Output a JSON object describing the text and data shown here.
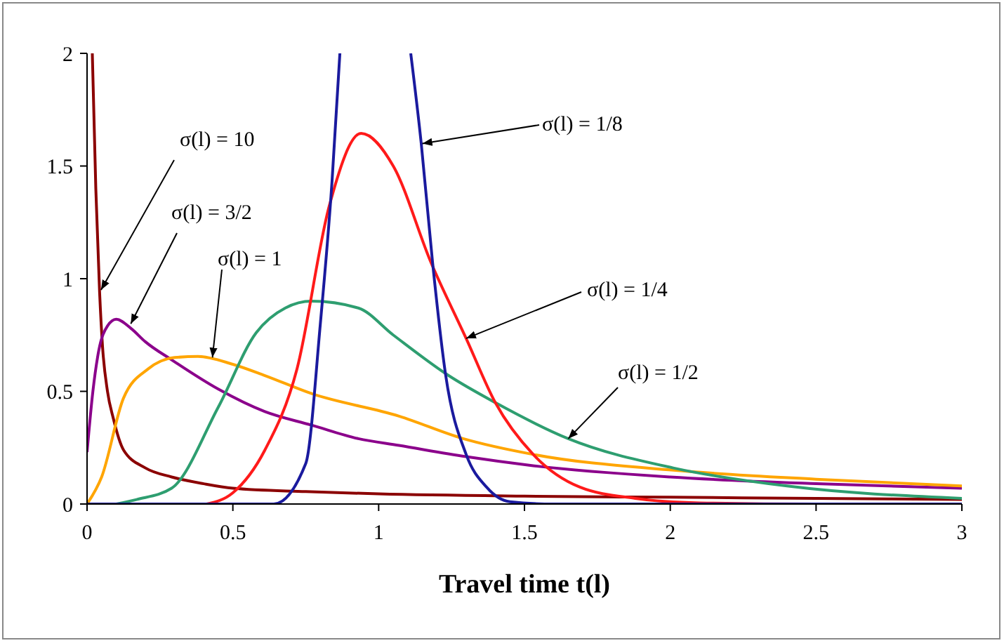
{
  "chart_data": {
    "type": "line",
    "xlabel": "Travel time t(l)",
    "xlim": [
      0,
      3
    ],
    "ylim": [
      0,
      2
    ],
    "xticks": [
      0,
      0.5,
      1,
      1.5,
      2,
      2.5,
      3
    ],
    "yticks": [
      0,
      0.5,
      1,
      1.5,
      2
    ],
    "grid": false,
    "marker": "none",
    "line_style": "solid",
    "series": [
      {
        "color": "#8b0000",
        "x": [
          0.018,
          0.03,
          0.043,
          0.053,
          0.07,
          0.09,
          0.125,
          0.2,
          0.29,
          0.4,
          0.5,
          0.75,
          1,
          1.5,
          2,
          2.5,
          3
        ],
        "values": [
          2,
          1.4,
          0.94,
          0.7,
          0.5,
          0.38,
          0.24,
          0.16,
          0.12,
          0.09,
          0.07,
          0.055,
          0.045,
          0.035,
          0.03,
          0.025,
          0.02
        ]
      },
      {
        "color": "#8b008b",
        "x": [
          0,
          0.02,
          0.04,
          0.07,
          0.1,
          0.15,
          0.2,
          0.29,
          0.45,
          0.61,
          0.77,
          0.93,
          1.07,
          1.3,
          1.53,
          2,
          2.5,
          3
        ],
        "values": [
          0.23,
          0.5,
          0.68,
          0.79,
          0.82,
          0.78,
          0.72,
          0.64,
          0.51,
          0.41,
          0.35,
          0.29,
          0.26,
          0.21,
          0.17,
          0.12,
          0.09,
          0.07
        ]
      },
      {
        "color": "#ffa500",
        "x": [
          0,
          0.05,
          0.125,
          0.21,
          0.3,
          0.38,
          0.5,
          0.61,
          0.77,
          1.07,
          1.29,
          1.53,
          2.01,
          2.5,
          3
        ],
        "values": [
          0,
          0.12,
          0.47,
          0.6,
          0.65,
          0.655,
          0.62,
          0.57,
          0.49,
          0.39,
          0.29,
          0.22,
          0.15,
          0.11,
          0.08
        ]
      },
      {
        "color": "#2e9e70",
        "x": [
          0.1,
          0.17,
          0.29,
          0.45,
          0.58,
          0.68,
          0.77,
          0.93,
          1.05,
          1.24,
          1.4,
          1.65,
          2.01,
          2.4,
          3
        ],
        "values": [
          0,
          0.02,
          0.07,
          0.43,
          0.76,
          0.87,
          0.9,
          0.87,
          0.75,
          0.57,
          0.45,
          0.29,
          0.16,
          0.08,
          0.025
        ]
      },
      {
        "color": "#ff1a1a",
        "x": [
          0.41,
          0.5,
          0.61,
          0.72,
          0.83,
          0.94,
          1.05,
          1.18,
          1.3,
          1.4,
          1.53,
          1.69,
          1.88,
          2.1,
          2.5,
          3
        ],
        "values": [
          0,
          0.05,
          0.24,
          0.6,
          1.32,
          1.645,
          1.5,
          1.07,
          0.735,
          0.45,
          0.22,
          0.075,
          0.025,
          0.005,
          0,
          0
        ]
      },
      {
        "color": "#1a1a9e",
        "x": [
          0,
          0.64,
          0.75,
          0.8,
          0.84,
          0.867,
          1,
          1.11,
          1.146,
          1.185,
          1.23,
          1.3,
          1.37,
          1.45,
          1.6,
          3
        ],
        "values": [
          0,
          0,
          0.18,
          0.8,
          1.43,
          2,
          null,
          2,
          1.6,
          1.07,
          0.57,
          0.22,
          0.075,
          0.01,
          0,
          0
        ]
      }
    ],
    "annotations": [
      {
        "text": "σ(l) = 10",
        "x": 0.048,
        "y": 0.95
      },
      {
        "text": "σ(l) = 3/2",
        "x": 0.15,
        "y": 0.8
      },
      {
        "text": "σ(l) = 1",
        "x": 0.43,
        "y": 0.65
      },
      {
        "text": "σ(l) = 1/8",
        "x": 1.15,
        "y": 1.6
      },
      {
        "text": "σ(l) = 1/4",
        "x": 1.3,
        "y": 0.735
      },
      {
        "text": "σ(l) = 1/2",
        "x": 1.65,
        "y": 0.29
      }
    ]
  }
}
